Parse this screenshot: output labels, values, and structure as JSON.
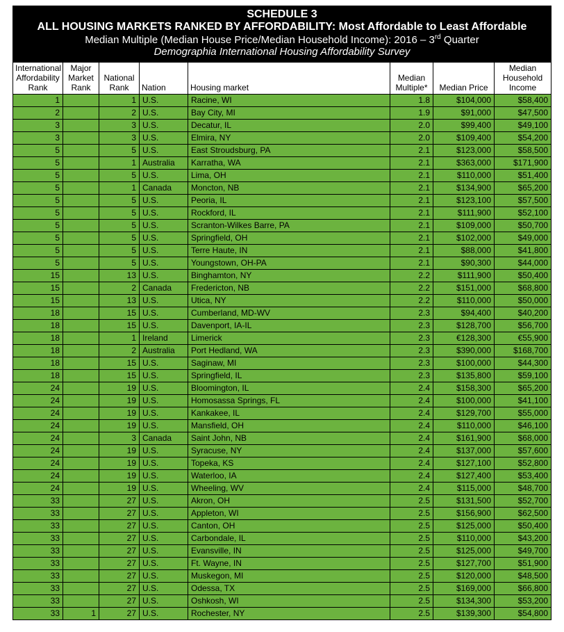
{
  "header": {
    "schedule": "SCHEDULE 3",
    "title": "ALL HOUSING MARKETS RANKED BY AFFORDABILITY: Most Affordable to Least Affordable",
    "sub_a": "Median Multiple (Median House Price/Median Household Income): 2016 – 3",
    "sub_a_sup": "rd",
    "sub_a_tail": " Quarter",
    "sub_b": "Demographia International Housing Affordability Survey"
  },
  "columns": {
    "intl": "International\nAffordability\nRank",
    "major": "Major\nMarket\nRank",
    "nat": "National\nRank",
    "nation": "Nation",
    "market": "Housing market",
    "mult": "Median\nMultiple*",
    "price": "Median Price",
    "income": "Median\nHousehold\nIncome"
  },
  "rows": [
    {
      "intl": "1",
      "major": "",
      "nat": "1",
      "nation": "U.S.",
      "market": "Racine, WI",
      "mult": "1.8",
      "price": "$104,000",
      "income": "$58,400"
    },
    {
      "intl": "2",
      "major": "",
      "nat": "2",
      "nation": "U.S.",
      "market": "Bay City, MI",
      "mult": "1.9",
      "price": "$91,000",
      "income": "$47,500"
    },
    {
      "intl": "3",
      "major": "",
      "nat": "3",
      "nation": "U.S.",
      "market": "Decatur, IL",
      "mult": "2.0",
      "price": "$99,400",
      "income": "$49,100"
    },
    {
      "intl": "3",
      "major": "",
      "nat": "3",
      "nation": "U.S.",
      "market": "Elmira, NY",
      "mult": "2.0",
      "price": "$109,400",
      "income": "$54,200"
    },
    {
      "intl": "5",
      "major": "",
      "nat": "5",
      "nation": "U.S.",
      "market": "East Stroudsburg, PA",
      "mult": "2.1",
      "price": "$123,000",
      "income": "$58,500"
    },
    {
      "intl": "5",
      "major": "",
      "nat": "1",
      "nation": "Australia",
      "market": "Karratha, WA",
      "mult": "2.1",
      "price": "$363,000",
      "income": "$171,900"
    },
    {
      "intl": "5",
      "major": "",
      "nat": "5",
      "nation": "U.S.",
      "market": "Lima, OH",
      "mult": "2.1",
      "price": "$110,000",
      "income": "$51,400"
    },
    {
      "intl": "5",
      "major": "",
      "nat": "1",
      "nation": "Canada",
      "market": "Moncton, NB",
      "mult": "2.1",
      "price": "$134,900",
      "income": "$65,200"
    },
    {
      "intl": "5",
      "major": "",
      "nat": "5",
      "nation": "U.S.",
      "market": "Peoria, IL",
      "mult": "2.1",
      "price": "$123,100",
      "income": "$57,500"
    },
    {
      "intl": "5",
      "major": "",
      "nat": "5",
      "nation": "U.S.",
      "market": "Rockford, IL",
      "mult": "2.1",
      "price": "$111,900",
      "income": "$52,100"
    },
    {
      "intl": "5",
      "major": "",
      "nat": "5",
      "nation": "U.S.",
      "market": "Scranton-Wilkes Barre, PA",
      "mult": "2.1",
      "price": "$109,000",
      "income": "$50,700"
    },
    {
      "intl": "5",
      "major": "",
      "nat": "5",
      "nation": "U.S.",
      "market": "Springfield, OH",
      "mult": "2.1",
      "price": "$102,000",
      "income": "$49,000"
    },
    {
      "intl": "5",
      "major": "",
      "nat": "5",
      "nation": "U.S.",
      "market": "Terre Haute, IN",
      "mult": "2.1",
      "price": "$88,000",
      "income": "$41,800"
    },
    {
      "intl": "5",
      "major": "",
      "nat": "5",
      "nation": "U.S.",
      "market": "Youngstown, OH-PA",
      "mult": "2.1",
      "price": "$90,300",
      "income": "$44,000"
    },
    {
      "intl": "15",
      "major": "",
      "nat": "13",
      "nation": "U.S.",
      "market": "Binghamton, NY",
      "mult": "2.2",
      "price": "$111,900",
      "income": "$50,400"
    },
    {
      "intl": "15",
      "major": "",
      "nat": "2",
      "nation": "Canada",
      "market": "Fredericton, NB",
      "mult": "2.2",
      "price": "$151,000",
      "income": "$68,800"
    },
    {
      "intl": "15",
      "major": "",
      "nat": "13",
      "nation": "U.S.",
      "market": "Utica, NY",
      "mult": "2.2",
      "price": "$110,000",
      "income": "$50,000"
    },
    {
      "intl": "18",
      "major": "",
      "nat": "15",
      "nation": "U.S.",
      "market": "Cumberland, MD-WV",
      "mult": "2.3",
      "price": "$94,400",
      "income": "$40,200"
    },
    {
      "intl": "18",
      "major": "",
      "nat": "15",
      "nation": "U.S.",
      "market": "Davenport, IA-IL",
      "mult": "2.3",
      "price": "$128,700",
      "income": "$56,700"
    },
    {
      "intl": "18",
      "major": "",
      "nat": "1",
      "nation": "Ireland",
      "market": "Limerick",
      "mult": "2.3",
      "price": "€128,300",
      "income": "€55,900"
    },
    {
      "intl": "18",
      "major": "",
      "nat": "2",
      "nation": "Australia",
      "market": "Port Hedland, WA",
      "mult": "2.3",
      "price": "$390,000",
      "income": "$168,700"
    },
    {
      "intl": "18",
      "major": "",
      "nat": "15",
      "nation": "U.S.",
      "market": "Saginaw, MI",
      "mult": "2.3",
      "price": "$100,000",
      "income": "$44,300"
    },
    {
      "intl": "18",
      "major": "",
      "nat": "15",
      "nation": "U.S.",
      "market": "Springfield, IL",
      "mult": "2.3",
      "price": "$135,800",
      "income": "$59,100"
    },
    {
      "intl": "24",
      "major": "",
      "nat": "19",
      "nation": "U.S.",
      "market": "Bloomington, IL",
      "mult": "2.4",
      "price": "$158,300",
      "income": "$65,200"
    },
    {
      "intl": "24",
      "major": "",
      "nat": "19",
      "nation": "U.S.",
      "market": "Homosassa Springs, FL",
      "mult": "2.4",
      "price": "$100,000",
      "income": "$41,100"
    },
    {
      "intl": "24",
      "major": "",
      "nat": "19",
      "nation": "U.S.",
      "market": "Kankakee, IL",
      "mult": "2.4",
      "price": "$129,700",
      "income": "$55,000"
    },
    {
      "intl": "24",
      "major": "",
      "nat": "19",
      "nation": "U.S.",
      "market": "Mansfield, OH",
      "mult": "2.4",
      "price": "$110,000",
      "income": "$46,100"
    },
    {
      "intl": "24",
      "major": "",
      "nat": "3",
      "nation": "Canada",
      "market": "Saint John, NB",
      "mult": "2.4",
      "price": "$161,900",
      "income": "$68,000"
    },
    {
      "intl": "24",
      "major": "",
      "nat": "19",
      "nation": "U.S.",
      "market": "Syracuse, NY",
      "mult": "2.4",
      "price": "$137,000",
      "income": "$57,600"
    },
    {
      "intl": "24",
      "major": "",
      "nat": "19",
      "nation": "U.S.",
      "market": "Topeka, KS",
      "mult": "2.4",
      "price": "$127,100",
      "income": "$52,800"
    },
    {
      "intl": "24",
      "major": "",
      "nat": "19",
      "nation": "U.S.",
      "market": "Waterloo, IA",
      "mult": "2.4",
      "price": "$127,400",
      "income": "$53,400"
    },
    {
      "intl": "24",
      "major": "",
      "nat": "19",
      "nation": "U.S.",
      "market": "Wheeling, WV",
      "mult": "2.4",
      "price": "$115,000",
      "income": "$48,700"
    },
    {
      "intl": "33",
      "major": "",
      "nat": "27",
      "nation": "U.S.",
      "market": "Akron, OH",
      "mult": "2.5",
      "price": "$131,500",
      "income": "$52,700"
    },
    {
      "intl": "33",
      "major": "",
      "nat": "27",
      "nation": "U.S.",
      "market": "Appleton, WI",
      "mult": "2.5",
      "price": "$156,900",
      "income": "$62,500"
    },
    {
      "intl": "33",
      "major": "",
      "nat": "27",
      "nation": "U.S.",
      "market": "Canton, OH",
      "mult": "2.5",
      "price": "$125,000",
      "income": "$50,400"
    },
    {
      "intl": "33",
      "major": "",
      "nat": "27",
      "nation": "U.S.",
      "market": "Carbondale, IL",
      "mult": "2.5",
      "price": "$110,000",
      "income": "$43,200"
    },
    {
      "intl": "33",
      "major": "",
      "nat": "27",
      "nation": "U.S.",
      "market": "Evansville, IN",
      "mult": "2.5",
      "price": "$125,000",
      "income": "$49,700"
    },
    {
      "intl": "33",
      "major": "",
      "nat": "27",
      "nation": "U.S.",
      "market": "Ft. Wayne, IN",
      "mult": "2.5",
      "price": "$127,700",
      "income": "$51,900"
    },
    {
      "intl": "33",
      "major": "",
      "nat": "27",
      "nation": "U.S.",
      "market": "Muskegon, MI",
      "mult": "2.5",
      "price": "$120,000",
      "income": "$48,500"
    },
    {
      "intl": "33",
      "major": "",
      "nat": "27",
      "nation": "U.S.",
      "market": "Odessa, TX",
      "mult": "2.5",
      "price": "$169,000",
      "income": "$66,800"
    },
    {
      "intl": "33",
      "major": "",
      "nat": "27",
      "nation": "U.S.",
      "market": "Oshkosh, WI",
      "mult": "2.5",
      "price": "$134,300",
      "income": "$53,200"
    },
    {
      "intl": "33",
      "major": "1",
      "nat": "27",
      "nation": "U.S.",
      "market": "Rochester, NY",
      "mult": "2.5",
      "price": "$139,300",
      "income": "$54,800"
    }
  ]
}
